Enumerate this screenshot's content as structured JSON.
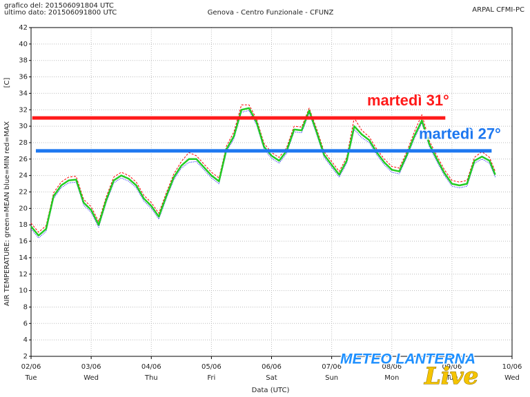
{
  "chart_data": {
    "type": "line",
    "header": [
      "grafico del: 201506091804 UTC",
      "ultimo dato: 201506091800 UTC"
    ],
    "title": "Genova - Centro Funzionale - CFUNZ",
    "source": "ARPAL CFMI-PC",
    "y_unit": "[C]",
    "y_label": "AIR TEMPERATURE: green=MEAN  blue=MIN  red=MAX",
    "x_label": "Data (UTC)",
    "watermark": [
      "METEO LANTERNA",
      "Live"
    ],
    "x": [
      0,
      0.125,
      0.25,
      0.375,
      0.5,
      0.625,
      0.75,
      0.875,
      1,
      1.125,
      1.25,
      1.375,
      1.5,
      1.625,
      1.75,
      1.875,
      2,
      2.125,
      2.25,
      2.375,
      2.5,
      2.625,
      2.75,
      2.875,
      3,
      3.125,
      3.25,
      3.375,
      3.5,
      3.625,
      3.75,
      3.875,
      4,
      4.125,
      4.25,
      4.375,
      4.5,
      4.625,
      4.75,
      4.875,
      5,
      5.125,
      5.25,
      5.375,
      5.5,
      5.625,
      5.75,
      5.875,
      6,
      6.125,
      6.25,
      6.375,
      6.5,
      6.625,
      6.75,
      6.875,
      7,
      7.125,
      7.25,
      7.375,
      7.5,
      7.625,
      7.72
    ],
    "series": [
      {
        "name": "MAX",
        "color": "#ff0000",
        "style": "dashed",
        "values": [
          18.2,
          17.1,
          17.9,
          21.9,
          23.2,
          23.8,
          23.9,
          21.1,
          20.2,
          18.4,
          21.4,
          23.8,
          24.4,
          24,
          23.2,
          21.6,
          20.7,
          19.4,
          21.9,
          24.2,
          25.7,
          26.8,
          26.4,
          25.4,
          24.4,
          23.7,
          27.6,
          29.3,
          32.6,
          32.6,
          30.9,
          27.9,
          26.8,
          26.2,
          27.4,
          30,
          29.9,
          32.2,
          29.7,
          26.9,
          25.7,
          24.5,
          26.2,
          31,
          29.5,
          28.7,
          27.2,
          26,
          25.1,
          24.9,
          26.9,
          29.3,
          31.4,
          28.2,
          26.4,
          24.7,
          23.4,
          23.2,
          23.4,
          26.2,
          26.9,
          26.2,
          24.5
        ]
      },
      {
        "name": "MIN",
        "color": "#0000ff",
        "style": "dotted",
        "values": [
          17.5,
          16.4,
          17.2,
          21.2,
          22.5,
          23.1,
          23.2,
          20.4,
          19.5,
          17.7,
          20.7,
          23.1,
          23.7,
          23.3,
          22.5,
          20.9,
          20,
          18.7,
          21.2,
          23.5,
          24.9,
          25.6,
          25.7,
          24.7,
          23.7,
          23,
          26.9,
          28.5,
          31.7,
          31.9,
          30.2,
          27.2,
          26.1,
          25.5,
          26.7,
          29.3,
          29.2,
          31.6,
          29,
          26.2,
          25,
          23.8,
          25.5,
          29.6,
          28.6,
          28,
          26.5,
          25.3,
          24.4,
          24.2,
          26.2,
          28.5,
          30.4,
          27.5,
          25.7,
          24,
          22.7,
          22.5,
          22.7,
          25.5,
          26,
          25.5,
          23.8
        ]
      },
      {
        "name": "MEAN",
        "color": "#22cc22",
        "style": "solid",
        "values": [
          17.8,
          16.7,
          17.5,
          21.5,
          22.8,
          23.4,
          23.5,
          20.7,
          19.8,
          18,
          21,
          23.4,
          24,
          23.6,
          22.8,
          21.2,
          20.3,
          19,
          21.5,
          23.8,
          25.2,
          26,
          26,
          25,
          24,
          23.3,
          27.2,
          28.8,
          32,
          32.2,
          30.5,
          27.5,
          26.4,
          25.8,
          27,
          29.6,
          29.5,
          31.9,
          29.3,
          26.5,
          25.3,
          24.1,
          25.8,
          30,
          29,
          28.3,
          26.8,
          25.6,
          24.7,
          24.5,
          26.5,
          28.8,
          30.7,
          27.8,
          26,
          24.3,
          23,
          22.8,
          23,
          25.8,
          26.3,
          25.8,
          24.1
        ]
      }
    ],
    "reference_lines": [
      {
        "label": "martedì 31°",
        "value": 31,
        "color": "#ff1a1a",
        "x": [
          0.02,
          6.89
        ]
      },
      {
        "label": "martedì 27°",
        "value": 27,
        "color": "#1e78f0",
        "x": [
          0.08,
          7.66
        ]
      }
    ],
    "xlim": [
      0,
      8
    ],
    "xticks": [
      {
        "value": 0,
        "label": "02/06"
      },
      {
        "value": 1,
        "label": "03/06"
      },
      {
        "value": 2,
        "label": "04/06"
      },
      {
        "value": 3,
        "label": "05/06"
      },
      {
        "value": 4,
        "label": "06/06"
      },
      {
        "value": 5,
        "label": "07/06"
      },
      {
        "value": 6,
        "label": "08/06"
      },
      {
        "value": 7,
        "label": "09/06"
      },
      {
        "value": 8,
        "label": "10/06"
      }
    ],
    "xtick_days": [
      "Tue",
      "Wed",
      "Thu",
      "Fri",
      "Sat",
      "Sun",
      "Mon",
      "Tue",
      "Wed"
    ],
    "ylim": [
      2,
      42
    ],
    "yticks": [
      2,
      4,
      6,
      8,
      10,
      12,
      14,
      16,
      18,
      20,
      22,
      24,
      26,
      28,
      30,
      32,
      34,
      36,
      38,
      40,
      42
    ],
    "grid": true
  }
}
